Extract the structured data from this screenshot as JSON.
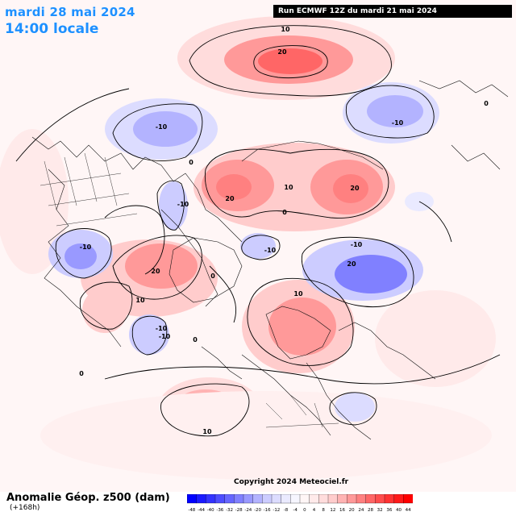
{
  "header": {
    "date": "mardi 28 mai 2024",
    "time": "14:00 locale",
    "run": "Run ECMWF 12Z du mardi 21 mai 2024"
  },
  "footer": {
    "title": "Anomalie Géop. z500 (dam)",
    "lead": "(+168h)",
    "copyright": "Copyright 2024 Meteociel.fr"
  },
  "colorbar": {
    "ticks": [
      "-48",
      "-44",
      "-40",
      "-36",
      "-32",
      "-28",
      "-24",
      "-20",
      "-16",
      "-12",
      "-8",
      "-4",
      "0",
      "4",
      "8",
      "12",
      "16",
      "20",
      "24",
      "28",
      "32",
      "36",
      "40",
      "44"
    ],
    "colors": [
      "#0000ff",
      "#1a1aff",
      "#3333ff",
      "#4d4dff",
      "#6666ff",
      "#8080ff",
      "#9999ff",
      "#b3b3ff",
      "#ccccff",
      "#dcdcff",
      "#eaeaff",
      "#f6f6ff",
      "#fff6f6",
      "#ffeaea",
      "#ffdcdc",
      "#ffcccc",
      "#ffb3b3",
      "#ff9999",
      "#ff8080",
      "#ff6666",
      "#ff4d4d",
      "#ff3333",
      "#ff1a1a",
      "#ff0000"
    ]
  },
  "contour_labels": [
    "10",
    "20",
    "-10",
    "-10",
    "20",
    "10",
    "20",
    "-10",
    "-10",
    "-10",
    "20",
    "-10",
    "20",
    "10",
    "-10",
    "10",
    "-10",
    "10",
    "0",
    "0",
    "0",
    "0",
    "0",
    "0"
  ]
}
